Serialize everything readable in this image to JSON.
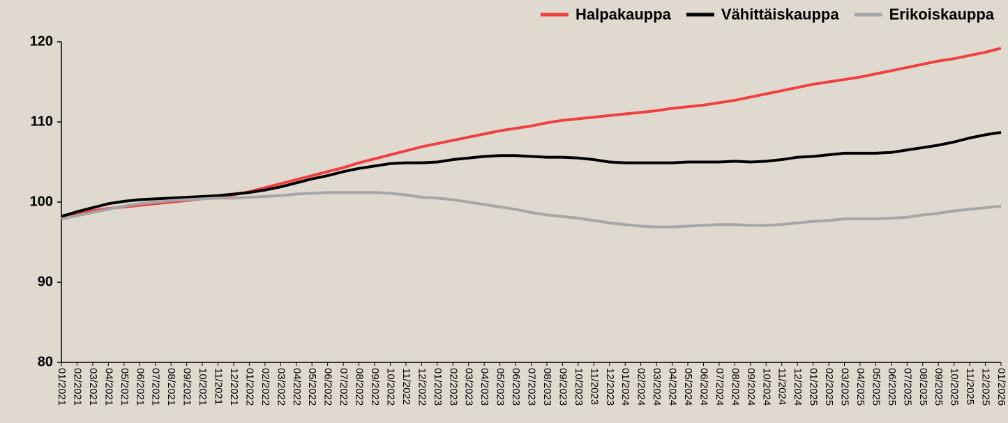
{
  "chart_data": {
    "type": "line",
    "categories": [
      "01/2021",
      "02/2021",
      "03/2021",
      "04/2021",
      "05/2021",
      "06/2021",
      "07/2021",
      "08/2021",
      "09/2021",
      "10/2021",
      "11/2021",
      "12/2021",
      "01/2022",
      "02/2022",
      "03/2022",
      "04/2022",
      "05/2022",
      "06/2022",
      "07/2022",
      "08/2022",
      "09/2022",
      "10/2022",
      "11/2022",
      "12/2022",
      "01/2023",
      "02/2023",
      "03/2023",
      "04/2023",
      "05/2023",
      "06/2023",
      "07/2023",
      "08/2023",
      "09/2023",
      "10/2023",
      "11/2023",
      "12/2023",
      "01/2024",
      "02/2024",
      "03/2024",
      "04/2024",
      "05/2024",
      "06/2024",
      "07/2024",
      "08/2024",
      "09/2024",
      "10/2024",
      "11/2024",
      "12/2024",
      "01/2025",
      "02/2025",
      "03/2025",
      "04/2025",
      "05/2025",
      "06/2025",
      "07/2025",
      "08/2025",
      "09/2025",
      "10/2025",
      "11/2025",
      "12/2025",
      "01/2026"
    ],
    "series": [
      {
        "name": "Halpakauppa",
        "color": "#f04040",
        "values": [
          98.3,
          98.6,
          98.9,
          99.2,
          99.4,
          99.6,
          99.8,
          100.0,
          100.2,
          100.4,
          100.6,
          100.9,
          101.3,
          101.8,
          102.3,
          102.8,
          103.3,
          103.8,
          104.3,
          104.9,
          105.4,
          105.9,
          106.4,
          106.9,
          107.3,
          107.7,
          108.1,
          108.5,
          108.9,
          109.2,
          109.5,
          109.9,
          110.2,
          110.4,
          110.6,
          110.8,
          111.0,
          111.2,
          111.4,
          111.7,
          111.9,
          112.1,
          112.4,
          112.7,
          113.1,
          113.5,
          113.9,
          114.3,
          114.7,
          115.0,
          115.3,
          115.6,
          116.0,
          116.4,
          116.8,
          117.2,
          117.6,
          117.9,
          118.3,
          118.7,
          119.2
        ]
      },
      {
        "name": "Vähittäiskauppa",
        "color": "#000000",
        "values": [
          98.2,
          98.8,
          99.3,
          99.8,
          100.1,
          100.3,
          100.4,
          100.5,
          100.6,
          100.7,
          100.8,
          101.0,
          101.2,
          101.5,
          101.9,
          102.4,
          102.9,
          103.3,
          103.8,
          104.2,
          104.5,
          104.8,
          104.9,
          104.9,
          105.0,
          105.3,
          105.5,
          105.7,
          105.8,
          105.8,
          105.7,
          105.6,
          105.6,
          105.5,
          105.3,
          105.0,
          104.9,
          104.9,
          104.9,
          104.9,
          105.0,
          105.0,
          105.0,
          105.1,
          105.0,
          105.1,
          105.3,
          105.6,
          105.7,
          105.9,
          106.1,
          106.1,
          106.1,
          106.2,
          106.5,
          106.8,
          107.1,
          107.5,
          108.0,
          108.4,
          108.7
        ]
      },
      {
        "name": "Erikoiskauppa",
        "color": "#a6a6a6",
        "values": [
          97.9,
          98.3,
          98.7,
          99.1,
          99.5,
          99.8,
          100.0,
          100.2,
          100.3,
          100.4,
          100.5,
          100.5,
          100.6,
          100.7,
          100.8,
          101.0,
          101.1,
          101.2,
          101.2,
          101.2,
          101.2,
          101.1,
          100.9,
          100.6,
          100.5,
          100.3,
          100.0,
          99.7,
          99.4,
          99.1,
          98.7,
          98.4,
          98.2,
          98.0,
          97.7,
          97.4,
          97.2,
          97.0,
          96.9,
          96.9,
          97.0,
          97.1,
          97.2,
          97.2,
          97.1,
          97.1,
          97.2,
          97.4,
          97.6,
          97.7,
          97.9,
          97.9,
          97.9,
          98.0,
          98.1,
          98.4,
          98.6,
          98.9,
          99.1,
          99.3,
          99.5
        ]
      }
    ],
    "ylim": [
      80,
      120
    ],
    "yticks": [
      80,
      90,
      100,
      110,
      120
    ],
    "legend": "top-right",
    "grid": false
  }
}
